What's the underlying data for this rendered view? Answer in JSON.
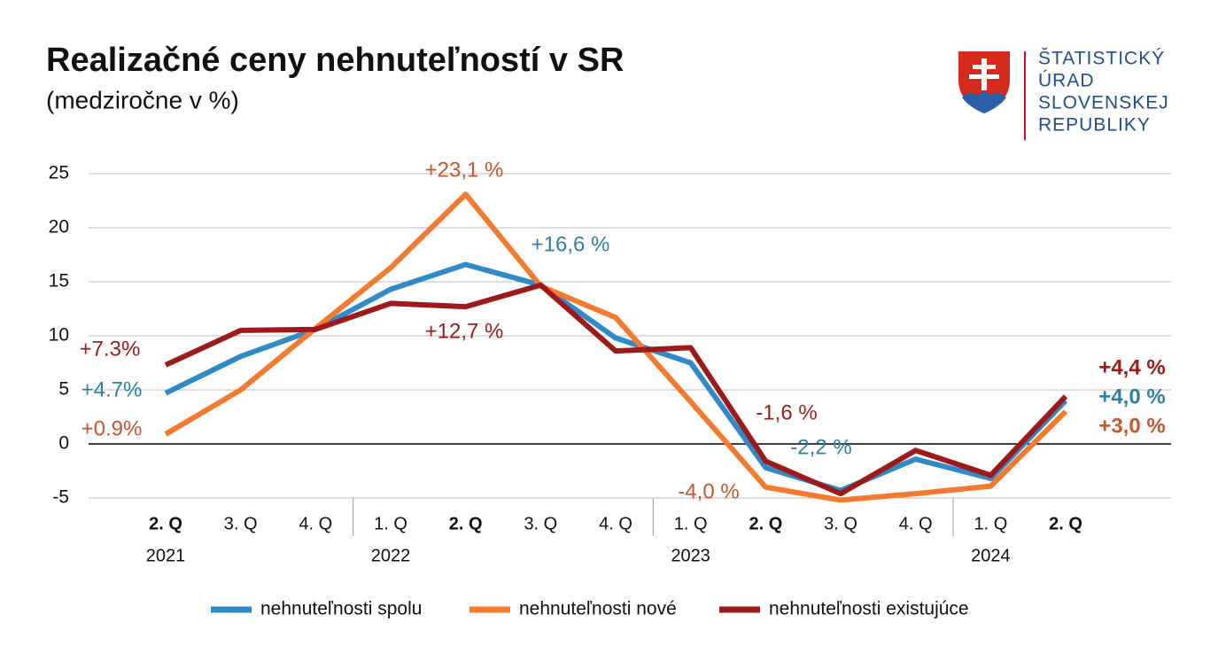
{
  "chart_data": {
    "type": "line",
    "title": "Realizačné ceny nehnuteľností v SR",
    "subtitle": "(medziročne v %)",
    "category_groups": [
      {
        "name": "2021",
        "categories": [
          "2. Q",
          "3. Q",
          "4. Q"
        ]
      },
      {
        "name": "2022",
        "categories": [
          "1. Q",
          "2. Q",
          "3. Q",
          "4. Q"
        ]
      },
      {
        "name": "2023",
        "categories": [
          "1. Q",
          "2. Q",
          "3. Q",
          "4. Q"
        ]
      },
      {
        "name": "2024",
        "categories": [
          "1. Q",
          "2. Q"
        ]
      }
    ],
    "series": [
      {
        "name": "nehnuteľnosti spolu",
        "color": "#2e8bc8",
        "label_color": "#2f7fa6",
        "values": [
          4.7,
          8.1,
          10.6,
          14.3,
          16.6,
          14.7,
          9.8,
          7.5,
          -2.2,
          -4.3,
          -1.4,
          -3.2,
          4.0
        ],
        "value_labels": [
          "+4.7%",
          null,
          null,
          null,
          "+16,6 %",
          null,
          null,
          null,
          "-2,2 %",
          null,
          null,
          null,
          "+4,0 %"
        ]
      },
      {
        "name": "nehnuteľnosti nové",
        "color": "#f47a2e",
        "label_color": "#c8562a",
        "values": [
          0.9,
          5.0,
          10.7,
          16.3,
          23.1,
          14.6,
          11.7,
          3.9,
          -4.0,
          -5.2,
          -4.6,
          -3.9,
          3.0
        ],
        "value_labels": [
          "+0.9%",
          null,
          null,
          null,
          "+23,1 %",
          null,
          null,
          null,
          "-4,0 %",
          null,
          null,
          null,
          "+3,0 %"
        ]
      },
      {
        "name": "nehnuteľnosti existujúce",
        "color": "#9e1a1a",
        "label_color": "#9b1b1b",
        "values": [
          7.3,
          10.5,
          10.6,
          13.0,
          12.7,
          14.7,
          8.6,
          8.9,
          -1.6,
          -4.6,
          -0.6,
          -2.9,
          4.4
        ],
        "value_labels": [
          "+7.3%",
          null,
          null,
          null,
          "+12,7 %",
          null,
          null,
          null,
          "-1,6 %",
          null,
          null,
          null,
          "+4,4 %"
        ]
      }
    ],
    "ylim": [
      -5,
      25
    ],
    "yticks": [
      -5,
      0,
      5,
      10,
      15,
      20,
      25
    ],
    "grid": true,
    "legend": "bottom"
  },
  "logo": {
    "lines": [
      "ŠTATISTICKÝ",
      "ÚRAD",
      "SLOVENSKEJ",
      "REPUBLIKY"
    ]
  }
}
